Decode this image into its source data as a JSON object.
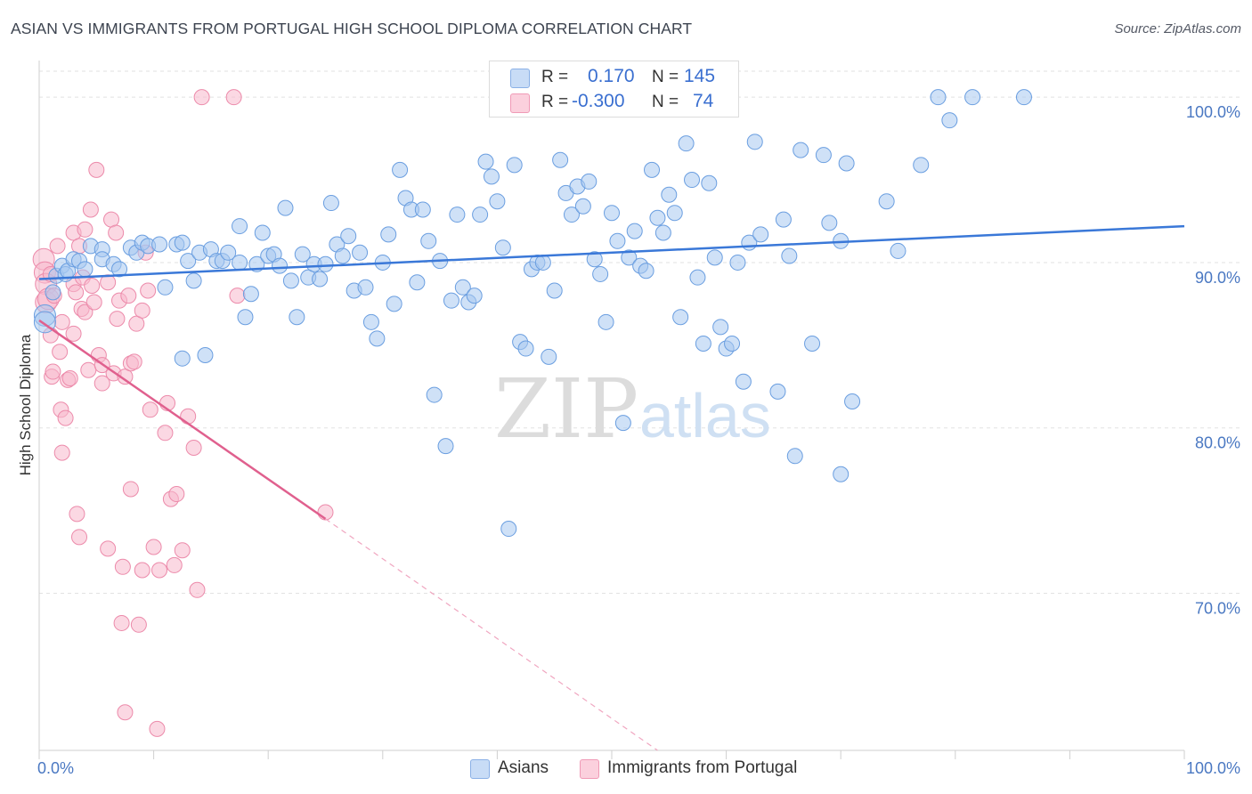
{
  "title": "ASIAN VS IMMIGRANTS FROM PORTUGAL HIGH SCHOOL DIPLOMA CORRELATION CHART",
  "source": "Source: ZipAtlas.com",
  "watermark": {
    "zip": "ZIP",
    "atlas": "atlas"
  },
  "legend": {
    "r_label": "R =",
    "n_label": "N =",
    "rows": [
      {
        "r": "0.170",
        "n": "145",
        "color": "#a8c8f0"
      },
      {
        "r": "-0.300",
        "n": "74",
        "color": "#f8b8cc"
      }
    ]
  },
  "bottom_legend": {
    "asians": "Asians",
    "portugal": "Immigrants from Portugal"
  },
  "chart_data": {
    "type": "scatter",
    "xlabel": "",
    "ylabel": "High School Diploma",
    "xlim": [
      0,
      100
    ],
    "ylim": [
      60.5,
      102
    ],
    "x_ticks": [
      {
        "value": 0,
        "label": "0.0%"
      },
      {
        "value": 100,
        "label": "100.0%"
      }
    ],
    "y_ticks": [
      {
        "value": 100,
        "label": "100.0%"
      },
      {
        "value": 90,
        "label": "90.0%"
      },
      {
        "value": 80,
        "label": "80.0%"
      },
      {
        "value": 70,
        "label": "70.0%"
      }
    ],
    "grid": true,
    "series": [
      {
        "name": "Asians",
        "color": "#a8c8f0",
        "stroke": "#6a9ee0",
        "trend": {
          "x": [
            0,
            100
          ],
          "y": [
            89.0,
            92.2
          ],
          "color": "#3a78d8"
        },
        "points": [
          [
            0.5,
            86.8
          ],
          [
            0.5,
            86.4
          ],
          [
            1.2,
            88.2
          ],
          [
            1.5,
            89.2
          ],
          [
            2.0,
            89.8
          ],
          [
            2.3,
            89.3
          ],
          [
            2.5,
            89.5
          ],
          [
            3.0,
            90.2
          ],
          [
            3.5,
            90.1
          ],
          [
            4.0,
            89.6
          ],
          [
            4.5,
            91.0
          ],
          [
            5.5,
            90.8
          ],
          [
            5.5,
            90.2
          ],
          [
            6.5,
            89.9
          ],
          [
            7.0,
            89.6
          ],
          [
            8.0,
            90.9
          ],
          [
            8.5,
            90.6
          ],
          [
            9.0,
            91.2
          ],
          [
            9.5,
            91.0
          ],
          [
            10.5,
            91.1
          ],
          [
            11.0,
            88.5
          ],
          [
            12.0,
            91.1
          ],
          [
            12.5,
            84.2
          ],
          [
            12.5,
            91.2
          ],
          [
            13.0,
            90.1
          ],
          [
            13.5,
            88.9
          ],
          [
            14.0,
            90.6
          ],
          [
            14.5,
            84.4
          ],
          [
            15.0,
            90.8
          ],
          [
            15.5,
            90.1
          ],
          [
            16.0,
            90.1
          ],
          [
            16.5,
            90.6
          ],
          [
            17.5,
            92.2
          ],
          [
            17.5,
            90.0
          ],
          [
            18.0,
            86.7
          ],
          [
            18.5,
            88.1
          ],
          [
            19.0,
            89.9
          ],
          [
            19.5,
            91.8
          ],
          [
            20.0,
            90.4
          ],
          [
            20.5,
            90.5
          ],
          [
            21.0,
            89.8
          ],
          [
            21.5,
            93.3
          ],
          [
            22.0,
            88.9
          ],
          [
            22.5,
            86.7
          ],
          [
            23.0,
            90.5
          ],
          [
            23.5,
            89.1
          ],
          [
            24.0,
            89.9
          ],
          [
            24.5,
            89.0
          ],
          [
            25.0,
            89.9
          ],
          [
            25.5,
            93.6
          ],
          [
            26.0,
            91.1
          ],
          [
            26.5,
            90.4
          ],
          [
            27.0,
            91.6
          ],
          [
            27.5,
            88.3
          ],
          [
            28.0,
            90.6
          ],
          [
            28.5,
            88.5
          ],
          [
            29.0,
            86.4
          ],
          [
            29.5,
            85.4
          ],
          [
            30.0,
            90.0
          ],
          [
            30.5,
            91.7
          ],
          [
            31.0,
            87.5
          ],
          [
            31.5,
            95.6
          ],
          [
            32.0,
            93.9
          ],
          [
            32.5,
            93.2
          ],
          [
            33.0,
            88.8
          ],
          [
            33.5,
            93.2
          ],
          [
            34.0,
            91.3
          ],
          [
            34.5,
            82.0
          ],
          [
            35.0,
            90.1
          ],
          [
            35.5,
            78.9
          ],
          [
            36.0,
            87.7
          ],
          [
            36.5,
            92.9
          ],
          [
            37.0,
            88.5
          ],
          [
            37.5,
            87.6
          ],
          [
            38.0,
            88.0
          ],
          [
            38.5,
            92.9
          ],
          [
            39.0,
            96.1
          ],
          [
            39.5,
            95.2
          ],
          [
            40.0,
            93.7
          ],
          [
            40.5,
            90.9
          ],
          [
            41.0,
            73.9
          ],
          [
            41.5,
            95.9
          ],
          [
            42.0,
            85.2
          ],
          [
            42.5,
            84.8
          ],
          [
            43.0,
            89.6
          ],
          [
            43.5,
            90.0
          ],
          [
            44.0,
            90.0
          ],
          [
            44.5,
            84.3
          ],
          [
            45.0,
            88.3
          ],
          [
            45.5,
            96.2
          ],
          [
            46.0,
            94.2
          ],
          [
            46.5,
            92.9
          ],
          [
            47.0,
            94.6
          ],
          [
            47.5,
            93.4
          ],
          [
            48.0,
            94.9
          ],
          [
            48.5,
            90.2
          ],
          [
            49.0,
            89.3
          ],
          [
            49.5,
            86.4
          ],
          [
            50.0,
            93.0
          ],
          [
            50.5,
            91.3
          ],
          [
            51.0,
            80.3
          ],
          [
            51.5,
            90.3
          ],
          [
            52.0,
            91.9
          ],
          [
            52.5,
            89.8
          ],
          [
            53.0,
            89.5
          ],
          [
            53.5,
            95.6
          ],
          [
            54.0,
            92.7
          ],
          [
            54.5,
            91.8
          ],
          [
            55.0,
            94.1
          ],
          [
            55.5,
            93.0
          ],
          [
            56.0,
            86.7
          ],
          [
            56.5,
            97.2
          ],
          [
            57.0,
            95.0
          ],
          [
            57.5,
            89.1
          ],
          [
            58.0,
            85.1
          ],
          [
            58.5,
            94.8
          ],
          [
            59.0,
            90.3
          ],
          [
            59.5,
            86.1
          ],
          [
            60.0,
            84.8
          ],
          [
            60.5,
            85.1
          ],
          [
            61.0,
            90.0
          ],
          [
            61.5,
            82.8
          ],
          [
            62.0,
            91.2
          ],
          [
            62.5,
            97.3
          ],
          [
            63.0,
            91.7
          ],
          [
            64.5,
            82.2
          ],
          [
            65.0,
            92.6
          ],
          [
            65.5,
            90.4
          ],
          [
            66.0,
            78.3
          ],
          [
            66.5,
            96.8
          ],
          [
            67.5,
            85.1
          ],
          [
            68.5,
            96.5
          ],
          [
            69.0,
            92.4
          ],
          [
            70.0,
            77.2
          ],
          [
            70.0,
            91.3
          ],
          [
            70.5,
            96.0
          ],
          [
            71.0,
            81.6
          ],
          [
            74.0,
            93.7
          ],
          [
            75.0,
            90.7
          ],
          [
            77.0,
            95.9
          ],
          [
            78.5,
            100.0
          ],
          [
            79.5,
            98.6
          ],
          [
            81.5,
            100.0
          ],
          [
            86.0,
            100.0
          ]
        ]
      },
      {
        "name": "Immigrants from Portugal",
        "color": "#f8b8cc",
        "stroke": "#ec8aaa",
        "trend": {
          "x": [
            0,
            25
          ],
          "y": [
            86.5,
            74.5
          ],
          "dash_to": [
            54,
            60.5
          ],
          "color": "#e0608e"
        },
        "points": [
          [
            0.4,
            90.2
          ],
          [
            0.5,
            89.4
          ],
          [
            0.6,
            88.7
          ],
          [
            0.6,
            87.6
          ],
          [
            0.8,
            87.8
          ],
          [
            1.0,
            89.3
          ],
          [
            1.0,
            85.6
          ],
          [
            1.1,
            83.1
          ],
          [
            1.2,
            83.4
          ],
          [
            1.3,
            88.0
          ],
          [
            1.6,
            91.0
          ],
          [
            1.8,
            84.6
          ],
          [
            1.9,
            81.1
          ],
          [
            2.0,
            78.5
          ],
          [
            2.0,
            86.4
          ],
          [
            2.3,
            80.6
          ],
          [
            2.5,
            82.9
          ],
          [
            2.7,
            83.0
          ],
          [
            3.0,
            91.8
          ],
          [
            3.0,
            88.7
          ],
          [
            3.0,
            85.7
          ],
          [
            3.2,
            88.2
          ],
          [
            3.3,
            74.8
          ],
          [
            3.5,
            73.4
          ],
          [
            3.5,
            91.0
          ],
          [
            3.7,
            87.2
          ],
          [
            3.8,
            89.1
          ],
          [
            4.0,
            87.0
          ],
          [
            4.0,
            92.0
          ],
          [
            4.3,
            83.5
          ],
          [
            4.5,
            93.2
          ],
          [
            4.6,
            88.6
          ],
          [
            4.8,
            87.6
          ],
          [
            5.0,
            95.6
          ],
          [
            5.2,
            84.4
          ],
          [
            5.5,
            82.7
          ],
          [
            5.5,
            83.8
          ],
          [
            6.0,
            88.8
          ],
          [
            6.0,
            72.7
          ],
          [
            6.3,
            92.6
          ],
          [
            6.5,
            83.3
          ],
          [
            6.7,
            91.8
          ],
          [
            6.8,
            86.6
          ],
          [
            7.0,
            87.7
          ],
          [
            7.2,
            68.2
          ],
          [
            7.3,
            71.6
          ],
          [
            7.5,
            62.8
          ],
          [
            7.5,
            83.1
          ],
          [
            7.8,
            88.0
          ],
          [
            8.0,
            83.9
          ],
          [
            8.0,
            76.3
          ],
          [
            8.3,
            84.0
          ],
          [
            8.5,
            86.3
          ],
          [
            8.7,
            68.1
          ],
          [
            9.0,
            71.4
          ],
          [
            9.0,
            87.1
          ],
          [
            9.3,
            90.6
          ],
          [
            9.5,
            88.3
          ],
          [
            9.7,
            81.1
          ],
          [
            10.0,
            72.8
          ],
          [
            10.3,
            61.8
          ],
          [
            10.5,
            71.4
          ],
          [
            11.0,
            79.7
          ],
          [
            11.2,
            81.5
          ],
          [
            11.5,
            75.7
          ],
          [
            11.8,
            71.7
          ],
          [
            12.0,
            76.0
          ],
          [
            12.5,
            72.6
          ],
          [
            13.0,
            80.7
          ],
          [
            13.5,
            78.8
          ],
          [
            13.8,
            70.2
          ],
          [
            14.2,
            100.0
          ],
          [
            17.0,
            100.0
          ],
          [
            17.3,
            88.0
          ],
          [
            25.0,
            74.9
          ]
        ]
      }
    ]
  }
}
